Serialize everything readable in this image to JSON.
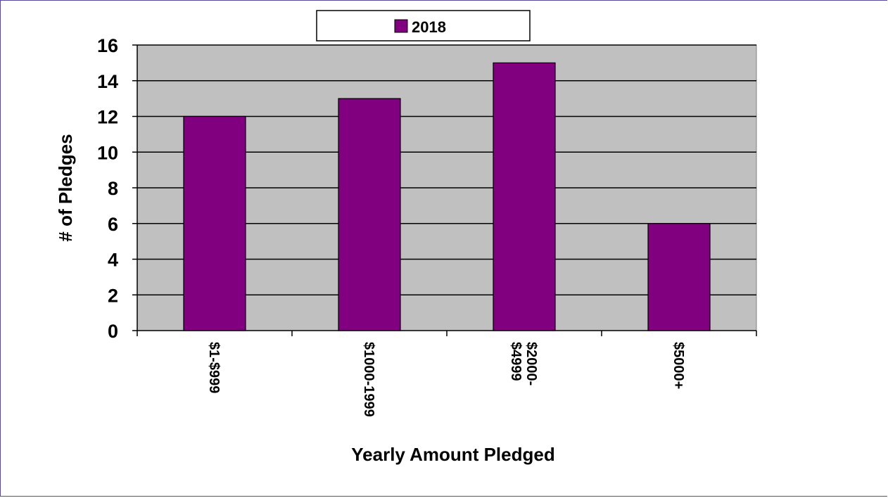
{
  "chart_data": {
    "type": "bar",
    "categories": [
      "$1-$999",
      "$1000-1999",
      "$2000-\n$4999",
      "$5000+"
    ],
    "series": [
      {
        "name": "2018",
        "values": [
          12,
          13,
          15,
          6
        ]
      }
    ],
    "xlabel": "Yearly Amount Pledged",
    "ylabel": "# of Pledges",
    "ylim": [
      0,
      16
    ],
    "yticks": [
      0,
      2,
      4,
      6,
      8,
      10,
      12,
      14,
      16
    ],
    "grid": true,
    "legend": "top-center",
    "colors": {
      "bar": "#800080",
      "plot_background": "#c0c0c0",
      "gridline": "#000000",
      "frame_border": "#5a4a9e"
    }
  }
}
